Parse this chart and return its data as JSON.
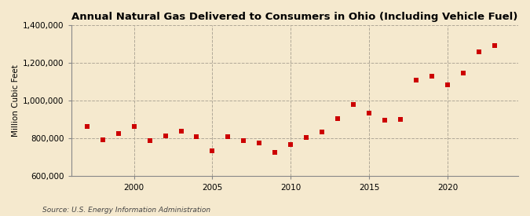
{
  "title": "Annual Natural Gas Delivered to Consumers in Ohio (Including Vehicle Fuel)",
  "ylabel": "Million Cubic Feet",
  "source": "Source: U.S. Energy Information Administration",
  "years": [
    1997,
    1998,
    1999,
    2000,
    2001,
    2002,
    2003,
    2004,
    2005,
    2006,
    2007,
    2008,
    2009,
    2010,
    2011,
    2012,
    2013,
    2014,
    2015,
    2016,
    2017,
    2018,
    2019,
    2020,
    2021,
    2022,
    2023
  ],
  "values": [
    865000,
    795000,
    825000,
    865000,
    790000,
    815000,
    840000,
    810000,
    735000,
    810000,
    790000,
    775000,
    725000,
    770000,
    805000,
    835000,
    905000,
    980000,
    935000,
    895000,
    900000,
    1110000,
    1130000,
    1085000,
    1145000,
    1260000,
    1290000
  ],
  "marker_color": "#cc0000",
  "marker_size": 4,
  "bg_color": "#f5e9ce",
  "grid_color": "#b0a898",
  "ylim": [
    600000,
    1400000
  ],
  "yticks": [
    600000,
    800000,
    1000000,
    1200000,
    1400000
  ],
  "ytick_labels": [
    "600,000",
    "800,000",
    "1,000,000",
    "1,200,000",
    "1,400,000"
  ],
  "xticks": [
    2000,
    2005,
    2010,
    2015,
    2020
  ],
  "xlim": [
    1996.0,
    2024.5
  ],
  "title_fontsize": 9.5,
  "ylabel_fontsize": 7.5,
  "tick_fontsize": 7.5,
  "source_fontsize": 6.5
}
